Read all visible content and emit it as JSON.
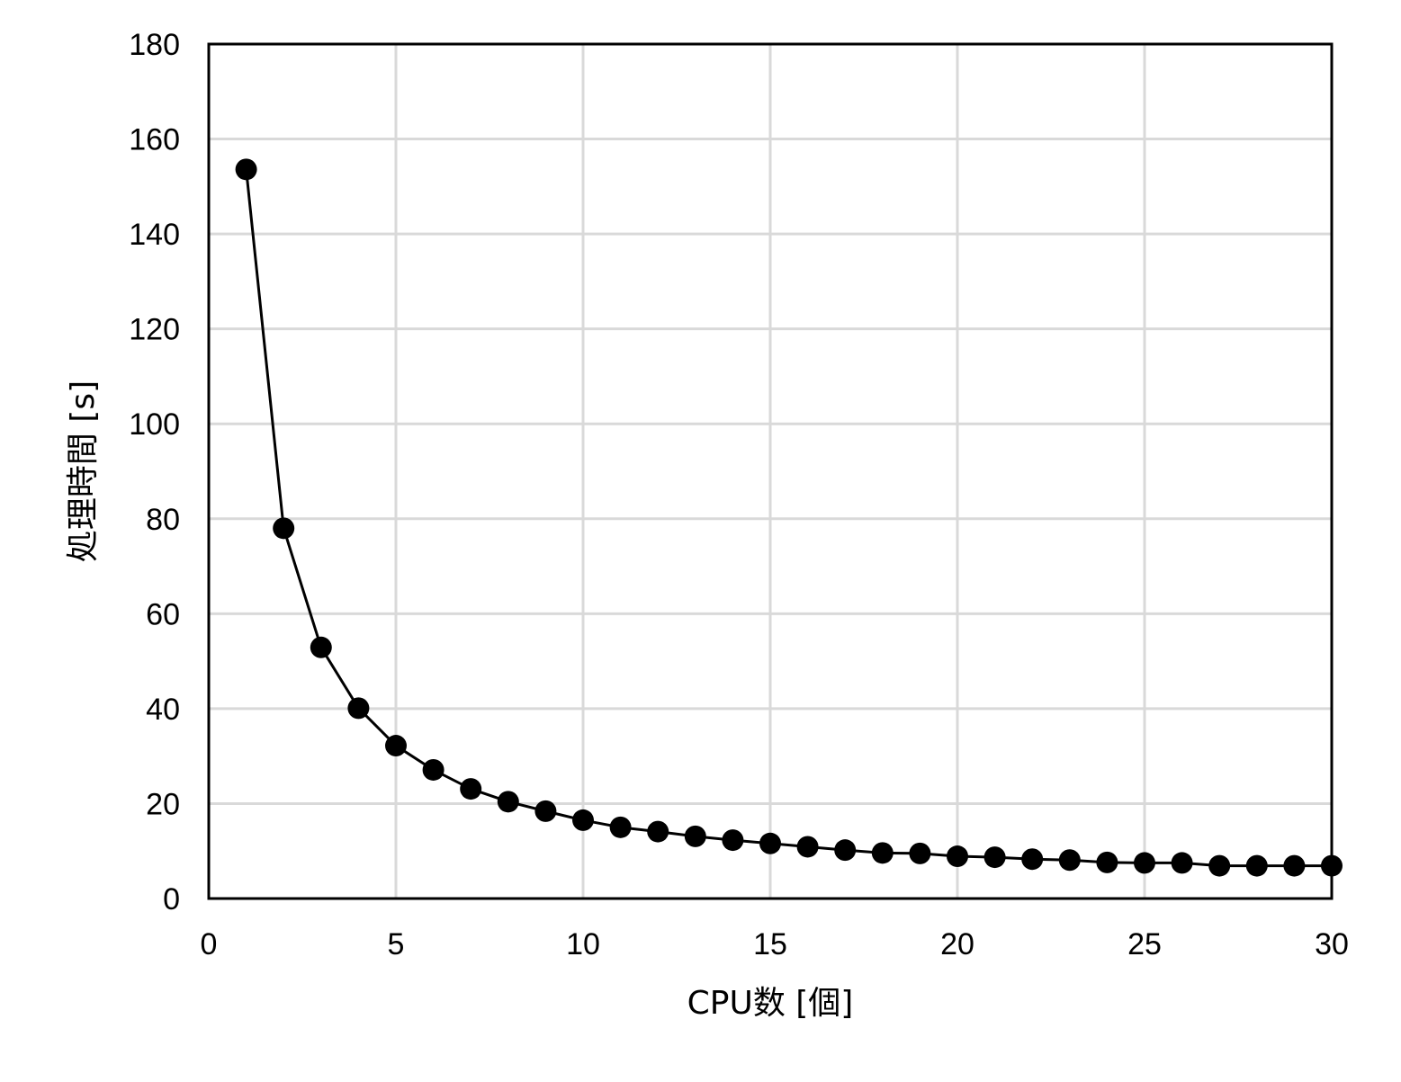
{
  "chart_data": {
    "type": "line",
    "xlabel": "CPU数 [個]",
    "ylabel": "処理時間 [s]",
    "xlim": [
      0,
      30
    ],
    "ylim": [
      0,
      180
    ],
    "xticks": [
      "0",
      "5",
      "10",
      "15",
      "20",
      "25",
      "30"
    ],
    "yticks": [
      "0",
      "20",
      "40",
      "60",
      "80",
      "100",
      "120",
      "140",
      "160",
      "180"
    ],
    "grid": true,
    "legend": "none",
    "series": [
      {
        "marker": "circle",
        "color": "#000000",
        "x": [
          1,
          2,
          3,
          4,
          5,
          6,
          7,
          8,
          9,
          10,
          11,
          12,
          13,
          14,
          15,
          16,
          17,
          18,
          19,
          20,
          21,
          22,
          23,
          24,
          25,
          26,
          27,
          28,
          29,
          30
        ],
        "y": [
          153.6,
          78.0,
          52.9,
          40.1,
          32.2,
          27.1,
          23.1,
          20.4,
          18.4,
          16.5,
          15.0,
          14.1,
          13.1,
          12.3,
          11.6,
          10.9,
          10.2,
          9.6,
          9.5,
          8.9,
          8.7,
          8.3,
          8.1,
          7.6,
          7.5,
          7.5,
          6.9,
          6.9,
          6.9,
          6.9
        ]
      }
    ]
  }
}
